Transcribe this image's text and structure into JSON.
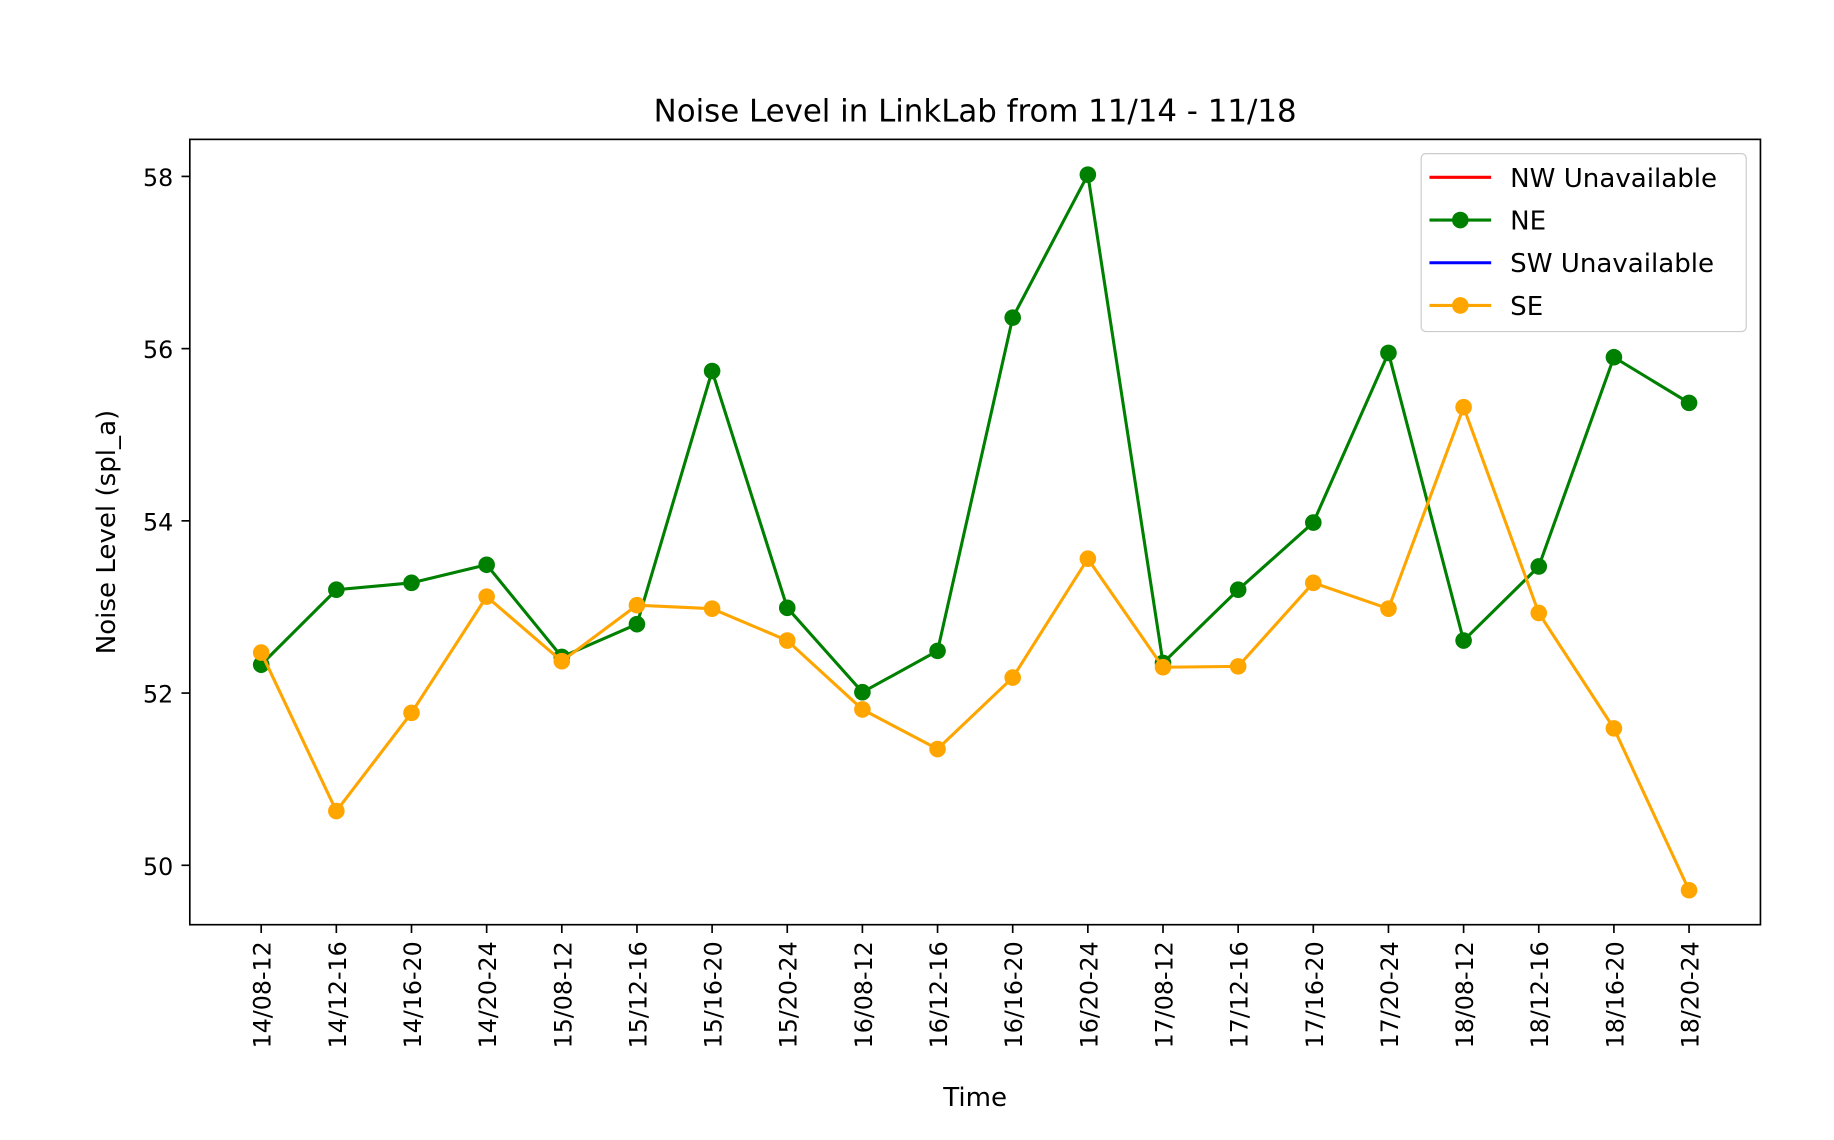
{
  "chart_data": {
    "type": "line",
    "title": "Noise Level in LinkLab from 11/14 - 11/18",
    "xlabel": "Time",
    "ylabel": "Noise Level  (spl_a)",
    "categories": [
      "14/08-12",
      "14/12-16",
      "14/16-20",
      "14/20-24",
      "15/08-12",
      "15/12-16",
      "15/16-20",
      "15/20-24",
      "16/08-12",
      "16/12-16",
      "16/16-20",
      "16/20-24",
      "17/08-12",
      "17/12-16",
      "17/16-20",
      "17/20-24",
      "18/08-12",
      "18/12-16",
      "18/16-20",
      "18/20-24"
    ],
    "series": [
      {
        "name": "NW Unavailable",
        "color": "red",
        "marker": false,
        "values": [
          null,
          null,
          null,
          null,
          null,
          null,
          null,
          null,
          null,
          null,
          null,
          null,
          null,
          null,
          null,
          null,
          null,
          null,
          null,
          null
        ]
      },
      {
        "name": "NE",
        "color": "green",
        "marker": true,
        "values": [
          52.33,
          53.2,
          53.28,
          53.49,
          52.42,
          52.8,
          55.74,
          52.99,
          52.01,
          52.49,
          56.36,
          58.02,
          52.35,
          53.2,
          53.98,
          55.95,
          52.61,
          53.47,
          55.9,
          55.37
        ]
      },
      {
        "name": "SW Unavailable",
        "color": "blue",
        "marker": false,
        "values": [
          null,
          null,
          null,
          null,
          null,
          null,
          null,
          null,
          null,
          null,
          null,
          null,
          null,
          null,
          null,
          null,
          null,
          null,
          null,
          null
        ]
      },
      {
        "name": "SE",
        "color": "orange",
        "marker": true,
        "values": [
          52.47,
          50.63,
          51.77,
          53.12,
          52.37,
          53.02,
          52.98,
          52.61,
          51.81,
          51.35,
          52.18,
          53.56,
          52.3,
          52.31,
          53.28,
          52.98,
          55.32,
          52.93,
          51.59,
          49.71
        ]
      }
    ],
    "ylim": [
      49.31,
      58.43
    ],
    "yticks": [
      50,
      52,
      54,
      56,
      58
    ],
    "legend": "upper right",
    "grid": false
  }
}
